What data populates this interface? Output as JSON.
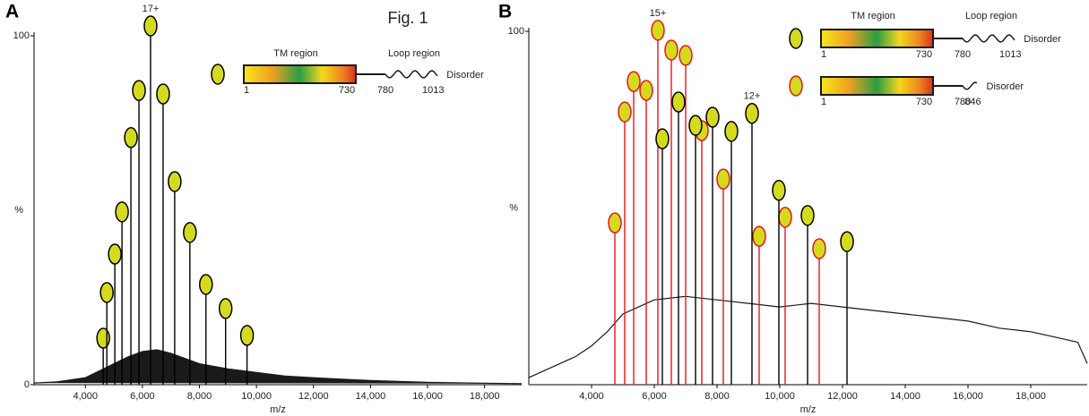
{
  "figure_label": "Fig. 1",
  "chart_data": [
    {
      "type": "stick",
      "title": "A",
      "xlabel": "m/z",
      "ylabel": "%",
      "xlim": [
        2200,
        19300
      ],
      "ylim": [
        0,
        100
      ],
      "xticks": [
        {
          "value": 4000,
          "label": "4,000"
        },
        {
          "value": 6000,
          "label": "6,000"
        },
        {
          "value": 8000,
          "label": "8,000"
        },
        {
          "value": 10000,
          "label": "10,000"
        },
        {
          "value": 12000,
          "label": "12,000"
        },
        {
          "value": 14000,
          "label": "14,000"
        },
        {
          "value": 16000,
          "label": "16,000"
        },
        {
          "value": 18000,
          "label": "18,000"
        }
      ],
      "yticks": [
        0,
        100
      ],
      "marker_color": "#d4db1e",
      "baseline": {
        "color": "#1a1a1a",
        "fill": true,
        "x": [
          2200,
          3000,
          4000,
          4500,
          5000,
          5500,
          6000,
          6500,
          7000,
          8000,
          9000,
          10000,
          11000,
          12000,
          13000,
          14000,
          16000,
          18000,
          19300
        ],
        "values": [
          0.5,
          0.8,
          2,
          4,
          6,
          8,
          9.5,
          10,
          9,
          6,
          4.5,
          3.5,
          2.5,
          2,
          1.6,
          1.2,
          0.7,
          0.4,
          0.3
        ]
      },
      "series": [
        {
          "color": "#000000",
          "x": [
            4626,
            4752,
            5033,
            5284,
            5597,
            5879,
            6286,
            6725,
            7132,
            7664,
            8228,
            8917,
            9669
          ],
          "values": [
            10.5,
            23.6,
            34.6,
            46.7,
            68,
            81.5,
            100,
            80.5,
            55.4,
            40.8,
            25.9,
            19,
            11.3
          ],
          "labels": [
            null,
            null,
            null,
            null,
            null,
            null,
            "17+",
            null,
            null,
            null,
            null,
            null,
            null
          ]
        }
      ]
    },
    {
      "type": "stick",
      "title": "B",
      "xlabel": "m/z",
      "ylabel": "%",
      "xlim": [
        2000,
        19800
      ],
      "ylim": [
        0,
        100
      ],
      "xticks": [
        {
          "value": 4000,
          "label": "4,000"
        },
        {
          "value": 6000,
          "label": "6,000"
        },
        {
          "value": 8000,
          "label": "8,000"
        },
        {
          "value": 10000,
          "label": "10,000"
        },
        {
          "value": 12000,
          "label": "12,000"
        },
        {
          "value": 14000,
          "label": "14,000"
        },
        {
          "value": 16000,
          "label": "16,000"
        },
        {
          "value": 18000,
          "label": "18,000"
        }
      ],
      "yticks": [
        100
      ],
      "marker_color": "#d4db1e",
      "baseline": {
        "color": "#1a1a1a",
        "fill": false,
        "x": [
          2000,
          2500,
          3000,
          3500,
          4000,
          4500,
          5000,
          5500,
          6000,
          7000,
          8000,
          9000,
          10000,
          11000,
          12000,
          13000,
          14000,
          15000,
          16000,
          17000,
          18000,
          19000,
          19500,
          19800
        ],
        "values": [
          2,
          4,
          6,
          8,
          11,
          15,
          20,
          22,
          24,
          25,
          24,
          23,
          22,
          23,
          22,
          21,
          20,
          19,
          18,
          16,
          15,
          13,
          12,
          6
        ]
      },
      "series": [
        {
          "color": "#e8141b",
          "x": [
            4743,
            5057,
            5343,
            5743,
            6114,
            6543,
            7000,
            7514,
            8200,
            9343,
            10171,
            11257
          ],
          "values": [
            43,
            74.4,
            83,
            80.5,
            97.5,
            91.9,
            90.4,
            69.1,
            55.4,
            39.2,
            44.6,
            35.7
          ],
          "labels": [
            null,
            null,
            null,
            null,
            "15+",
            null,
            null,
            null,
            null,
            null,
            null,
            null
          ]
        },
        {
          "color": "#000000",
          "x": [
            6257,
            6771,
            7314,
            7857,
            8457,
            9114,
            9971,
            10886,
            12143
          ],
          "values": [
            66.8,
            77.2,
            70.6,
            72.9,
            68.9,
            74,
            52.2,
            45.1,
            37.7
          ],
          "labels": [
            null,
            null,
            null,
            null,
            null,
            "12+",
            null,
            null,
            null
          ]
        }
      ]
    }
  ],
  "schematics": [
    {
      "region_labels": [
        "TM region",
        "Loop region"
      ],
      "constructs": [
        {
          "color": "#000000",
          "residues": [
            1,
            730,
            780,
            1013
          ],
          "tail": "Disorder"
        }
      ]
    },
    {
      "region_labels": [
        "TM region",
        "Loop region"
      ],
      "constructs": [
        {
          "color": "#000000",
          "residues": [
            1,
            730,
            780,
            1013
          ],
          "tail": "Disorder"
        },
        {
          "color": "#e8141b",
          "residues": [
            1,
            730,
            780,
            846
          ],
          "tail": "Disorder"
        }
      ]
    }
  ]
}
